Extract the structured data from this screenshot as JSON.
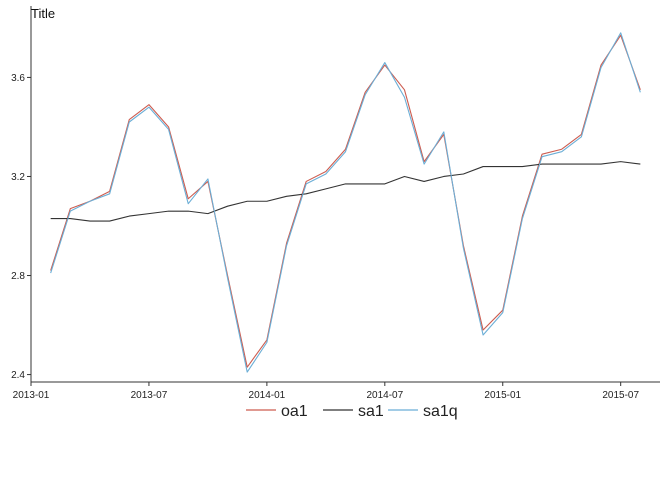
{
  "chart_data": {
    "type": "line",
    "title": "Title",
    "xlabel": "",
    "ylabel": "",
    "x": [
      "2013-02",
      "2013-03",
      "2013-04",
      "2013-05",
      "2013-06",
      "2013-07",
      "2013-08",
      "2013-09",
      "2013-10",
      "2013-11",
      "2013-12",
      "2014-01",
      "2014-02",
      "2014-03",
      "2014-04",
      "2014-05",
      "2014-06",
      "2014-07",
      "2014-08",
      "2014-09",
      "2014-10",
      "2014-11",
      "2014-12",
      "2015-01",
      "2015-02",
      "2015-03",
      "2015-04",
      "2015-05",
      "2015-06",
      "2015-07",
      "2015-08"
    ],
    "xlim": [
      "2013-01",
      "2015-09"
    ],
    "ylim": [
      2.37,
      3.84
    ],
    "x_ticks": [
      "2013-01",
      "2013-07",
      "2014-01",
      "2014-07",
      "2015-01",
      "2015-07"
    ],
    "y_ticks": [
      2.4,
      2.8,
      3.2,
      3.6
    ],
    "grid": false,
    "legend_position": "bottom",
    "series": [
      {
        "name": "oa1",
        "color": "#cd5c4f",
        "values": [
          2.82,
          3.07,
          3.1,
          3.14,
          3.43,
          3.49,
          3.4,
          3.11,
          3.18,
          2.8,
          2.43,
          2.54,
          2.93,
          3.18,
          3.22,
          3.31,
          3.54,
          3.65,
          3.55,
          3.26,
          3.37,
          2.92,
          2.58,
          2.66,
          3.04,
          3.29,
          3.31,
          3.37,
          3.65,
          3.77,
          3.55
        ]
      },
      {
        "name": "sa1",
        "color": "#333333",
        "values": [
          3.03,
          3.03,
          3.02,
          3.02,
          3.04,
          3.05,
          3.06,
          3.06,
          3.05,
          3.08,
          3.1,
          3.1,
          3.12,
          3.13,
          3.15,
          3.17,
          3.17,
          3.17,
          3.2,
          3.18,
          3.2,
          3.21,
          3.24,
          3.24,
          3.24,
          3.25,
          3.25,
          3.25,
          3.25,
          3.26,
          3.25
        ]
      },
      {
        "name": "sa1q",
        "color": "#6baed6",
        "values": [
          2.81,
          3.06,
          3.1,
          3.13,
          3.42,
          3.48,
          3.39,
          3.09,
          3.19,
          2.79,
          2.41,
          2.53,
          2.92,
          3.17,
          3.21,
          3.3,
          3.53,
          3.66,
          3.52,
          3.25,
          3.38,
          2.91,
          2.56,
          2.65,
          3.03,
          3.28,
          3.3,
          3.36,
          3.64,
          3.78,
          3.54
        ]
      }
    ]
  }
}
